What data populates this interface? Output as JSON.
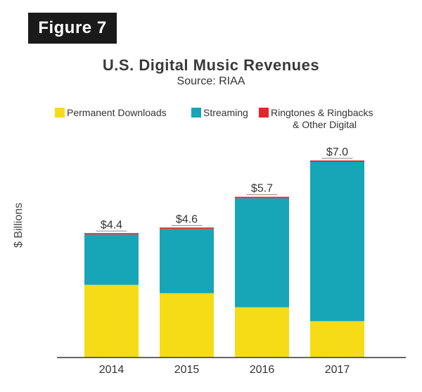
{
  "figure_label": "Figure 7",
  "chart_data": {
    "type": "bar",
    "stacked": true,
    "title": "U.S. Digital Music Revenues",
    "subtitle": "Source: RIAA",
    "xlabel": "",
    "ylabel": "$ Billions",
    "ylim": [
      0,
      7.3
    ],
    "grid": false,
    "legend_position": "top",
    "categories": [
      "2014",
      "2015",
      "2016",
      "2017"
    ],
    "series": [
      {
        "name": "Permanent Downloads",
        "color": "#f5dc16",
        "values": [
          2.6,
          2.3,
          1.8,
          1.3
        ]
      },
      {
        "name": "Streaming",
        "color": "#17a6b8",
        "values": [
          1.8,
          2.3,
          3.9,
          5.7
        ]
      },
      {
        "name": "Ringtones & Ringbacks & Other Digital",
        "color": "#e3262b",
        "values": [
          0.05,
          0.05,
          0.05,
          0.05
        ]
      }
    ],
    "legend_labels": [
      {
        "line1": "Permanent Downloads"
      },
      {
        "line1": "Streaming"
      },
      {
        "line1": "Ringtones & Ringbacks",
        "line2": "& Other Digital"
      }
    ],
    "totals": [
      "$4.4",
      "$4.6",
      "$5.7",
      "$7.0"
    ]
  }
}
